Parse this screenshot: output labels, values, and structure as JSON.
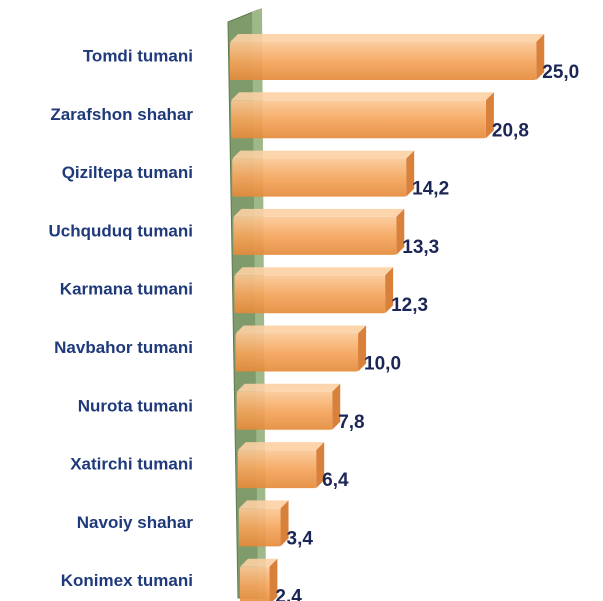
{
  "chart_data": {
    "type": "bar",
    "orientation": "horizontal",
    "categories": [
      "Tomdi tumani",
      "Zarafshon shahar",
      "Qiziltepa tumani",
      "Uchquduq tumani",
      "Karmana tumani",
      "Navbahor tumani",
      "Nurota tumani",
      "Xatirchi tumani",
      "Navoiy shahar",
      "Konimex tumani"
    ],
    "values": [
      25.0,
      20.8,
      14.2,
      13.3,
      12.3,
      10.0,
      7.8,
      6.4,
      3.4,
      2.4
    ],
    "value_labels": [
      "25,0",
      "20,8",
      "14,2",
      "13,3",
      "12,3",
      "10,0",
      "7,8",
      "6,4",
      "3,4",
      "2,4"
    ],
    "color": "#f5a55c",
    "wall_color": "#7f9a6b"
  }
}
